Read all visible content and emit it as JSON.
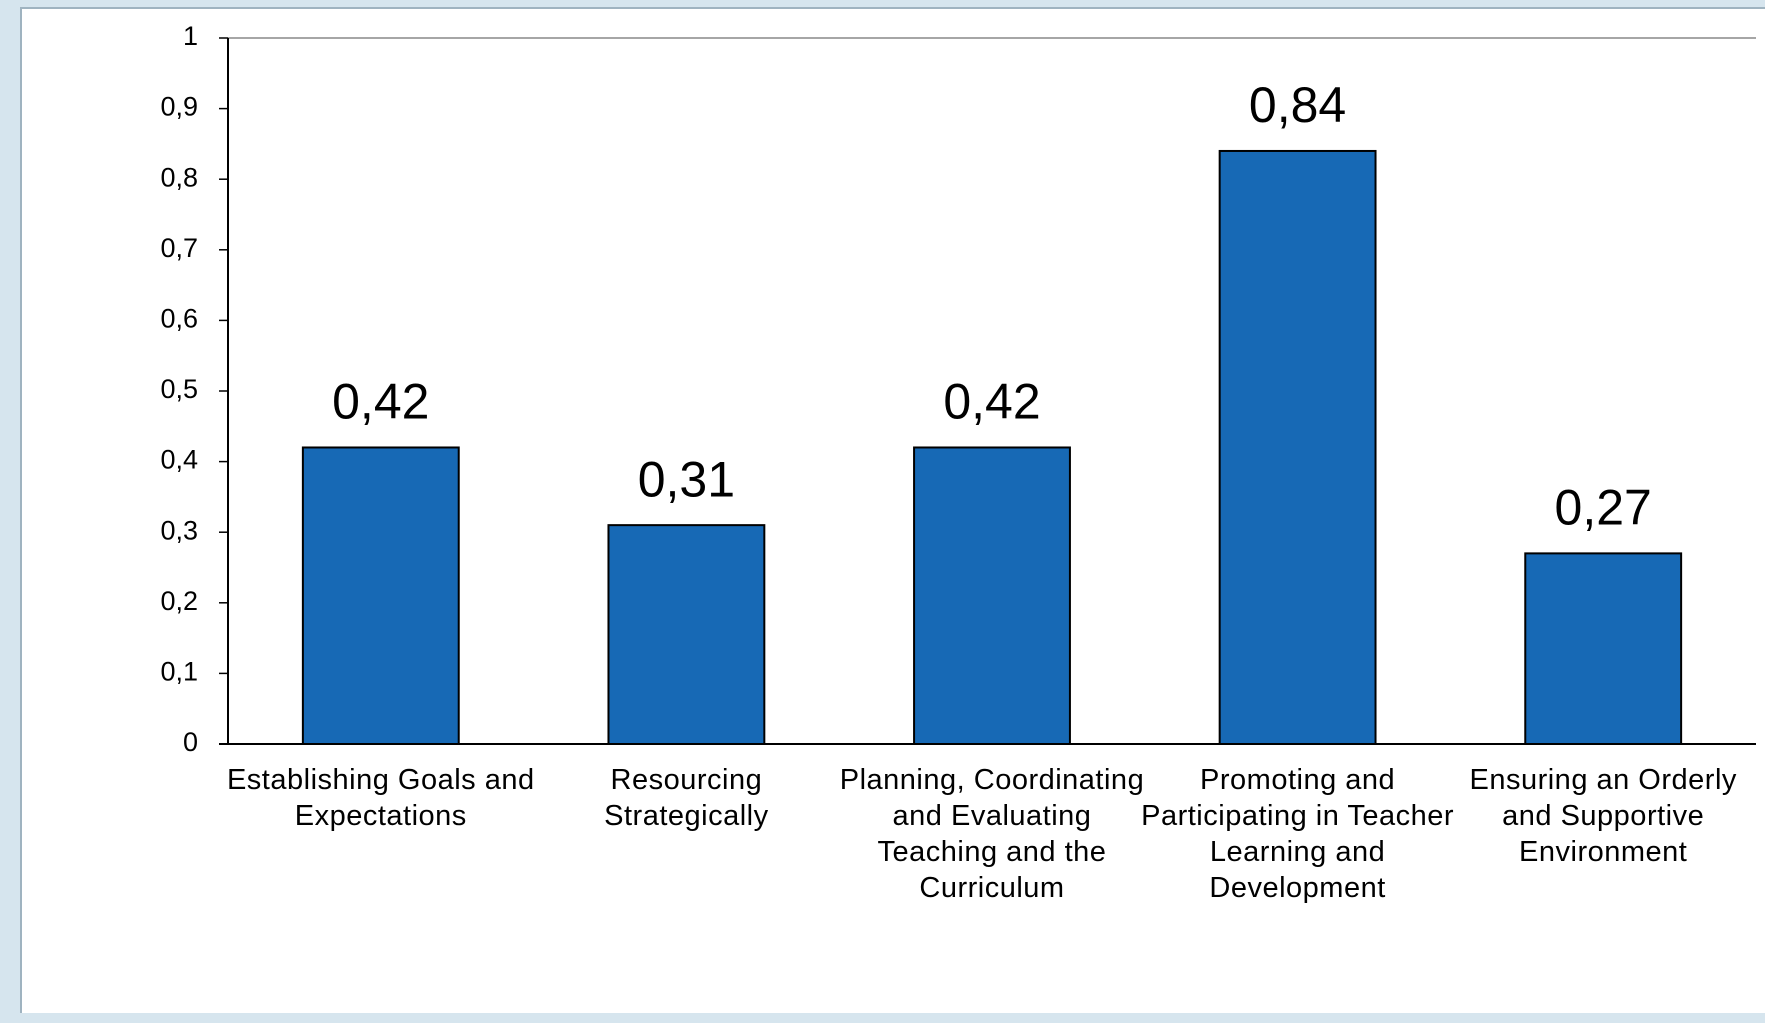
{
  "chart_data": {
    "type": "bar",
    "categories": [
      "Establishing Goals and Expectations",
      "Resourcing Strategically",
      "Planning, Coordinating and Evaluating Teaching and the Curriculum",
      "Promoting and Participating in Teacher Learning and Development",
      "Ensuring an Orderly and Supportive Environment"
    ],
    "values": [
      0.42,
      0.31,
      0.42,
      0.84,
      0.27
    ],
    "value_labels": [
      "0,42",
      "0,31",
      "0,42",
      "0,84",
      "0,27"
    ],
    "color": "#1769b5",
    "ylim": [
      0,
      1
    ],
    "yticks": [
      0,
      {
        "value": 0.1,
        "label": "0,1"
      },
      {
        "value": 0.2,
        "label": "0,2"
      },
      {
        "value": 0.3,
        "label": "0,3"
      },
      {
        "value": 0.4,
        "label": "0,4"
      },
      {
        "value": 0.5,
        "label": "0,5"
      },
      {
        "value": 0.6,
        "label": "0,6"
      },
      {
        "value": 0.7,
        "label": "0,7"
      },
      {
        "value": 0.8,
        "label": "0,8"
      },
      {
        "value": 0.9,
        "label": "0,9"
      },
      1
    ],
    "grid": false
  }
}
